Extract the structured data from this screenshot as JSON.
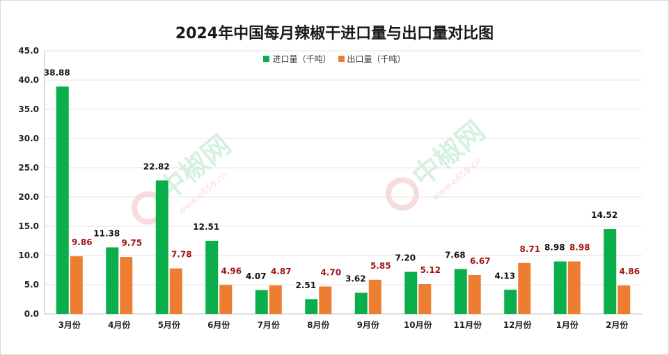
{
  "chart_data": {
    "type": "bar",
    "title": "2024年中国每月辣椒干进口量与出口量对比图",
    "categories": [
      "3月份",
      "4月份",
      "5月份",
      "6月份",
      "7月份",
      "8月份",
      "9月份",
      "10月份",
      "11月份",
      "12月份",
      "1月份",
      "2月份"
    ],
    "series": [
      {
        "name": "进口量（千吨）",
        "color": "#0aaf4b",
        "label_color": "#111111",
        "values": [
          38.88,
          11.38,
          22.82,
          12.51,
          4.07,
          2.51,
          3.62,
          7.2,
          7.68,
          4.13,
          8.98,
          14.52
        ],
        "labels": [
          "38.88",
          "11.38",
          "22.82",
          "12.51",
          "4.07",
          "2.51",
          "3.62",
          "7.20",
          "7.68",
          "4.13",
          "8.98",
          "14.52"
        ]
      },
      {
        "name": "出口量（千吨）",
        "color": "#ed7d31",
        "label_color": "#a31515",
        "values": [
          9.86,
          9.75,
          7.78,
          4.96,
          4.87,
          4.7,
          5.85,
          5.12,
          6.67,
          8.71,
          8.98,
          4.86
        ],
        "labels": [
          "9.86",
          "9.75",
          "7.78",
          "4.96",
          "4.87",
          "4.70",
          "5.85",
          "5.12",
          "6.67",
          "8.71",
          "8.98",
          "4.86"
        ]
      }
    ],
    "ylim": [
      0,
      45
    ],
    "yticks": [
      "0.0",
      "5.0",
      "10.0",
      "15.0",
      "20.0",
      "25.0",
      "30.0",
      "35.0",
      "40.0",
      "45.0"
    ],
    "xlabel": "",
    "ylabel": "",
    "grid": true,
    "legend": "top-center"
  },
  "watermark": {
    "brand": "中椒网",
    "url": "www.e658.cn"
  }
}
